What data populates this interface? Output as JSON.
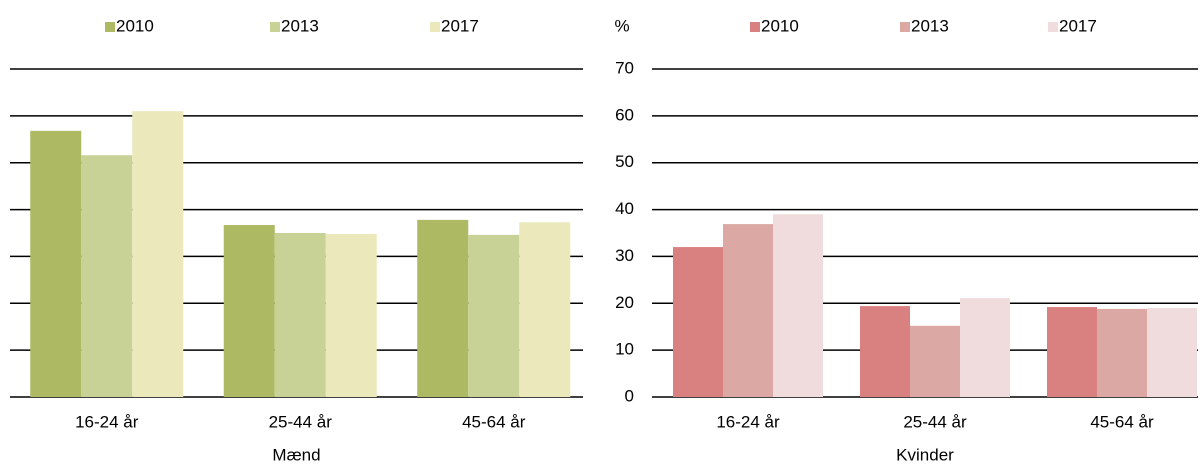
{
  "chart_data": [
    {
      "type": "bar",
      "x_label": "Mænd",
      "categories": [
        "16-24 år",
        "25-44 år",
        "45-64 år"
      ],
      "series": [
        {
          "name": "2010",
          "color": "#adb963",
          "values": [
            56.8,
            36.7,
            37.8
          ]
        },
        {
          "name": "2013",
          "color": "#c8d196",
          "values": [
            51.6,
            35,
            34.6
          ]
        },
        {
          "name": "2017",
          "color": "#ebe8bb",
          "values": [
            61,
            34.8,
            37.3
          ]
        }
      ],
      "ylim": [
        0,
        70
      ],
      "yticks": [
        0,
        10,
        20,
        30,
        40,
        50,
        60,
        70
      ],
      "grid": true
    },
    {
      "type": "bar",
      "x_label": "Kvinder",
      "y_label": "%",
      "categories": [
        "16-24 år",
        "25-44 år",
        "45-64 år"
      ],
      "series": [
        {
          "name": "2010",
          "color": "#d98080",
          "values": [
            32,
            19.4,
            19.2
          ]
        },
        {
          "name": "2013",
          "color": "#dba8a4",
          "values": [
            36.9,
            15.2,
            18.8
          ]
        },
        {
          "name": "2017",
          "color": "#f0dcdc",
          "values": [
            39,
            21.1,
            19
          ]
        }
      ],
      "ylim": [
        0,
        70
      ],
      "yticks": [
        0,
        10,
        20,
        30,
        40,
        50,
        60,
        70
      ],
      "grid": true
    }
  ]
}
